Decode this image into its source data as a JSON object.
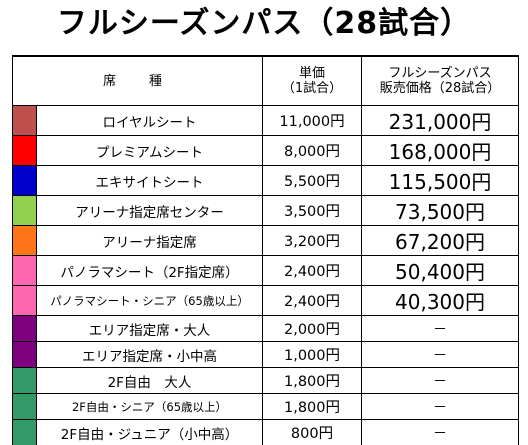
{
  "title": "フルシーズンパス（28試合）",
  "headers": {
    "seat": "席　種",
    "unit_line1": "単価",
    "unit_line2": "（1試合）",
    "total_line1": "フルシーズンパス",
    "total_line2": "販売価格（28試合）"
  },
  "rows": [
    {
      "color": "#c0504d",
      "name": "ロイヤルシート",
      "unit": "11,000円",
      "total": "231,000円"
    },
    {
      "color": "#ff0000",
      "name": "プレミアムシート",
      "unit": "8,000円",
      "total": "168,000円"
    },
    {
      "color": "#0000cc",
      "name": "エキサイトシート",
      "unit": "5,500円",
      "total": "115,500円"
    },
    {
      "color": "#92d050",
      "name": "アリーナ指定席センター",
      "unit": "3,500円",
      "total": "73,500円"
    },
    {
      "color": "#ff7518",
      "name": "アリーナ指定席",
      "unit": "3,200円",
      "total": "67,200円"
    },
    {
      "color": "#ff66b2",
      "name": "パノラマシート（2F指定席）",
      "unit": "2,400円",
      "total": "50,400円"
    },
    {
      "color": "#ff66b2",
      "name": "パノラマシート・シニア（65歳以上）",
      "unit": "2,400円",
      "total": "40,300円"
    },
    {
      "color": "#7f007f",
      "name": "エリア指定席・大人",
      "unit": "2,000円",
      "total": "－"
    },
    {
      "color": "#7f007f",
      "name": "エリア指定席・小中高",
      "unit": "1,000円",
      "total": "－"
    },
    {
      "color": "#339966",
      "name": "2F自由　大人",
      "unit": "1,800円",
      "total": "－"
    },
    {
      "color": "#339966",
      "name": "2F自由・シニア（65歳以上）",
      "unit": "1,800円",
      "total": "－"
    },
    {
      "color": "#339966",
      "name": "2F自由・ジュニア（小中高）",
      "unit": "800円",
      "total": "－"
    }
  ]
}
